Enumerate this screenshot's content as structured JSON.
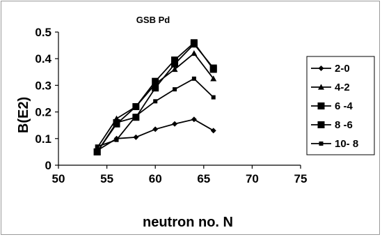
{
  "chart_data": {
    "type": "line",
    "title": "GSB Pd",
    "xlabel": "neutron no. N",
    "ylabel": "B(E2)",
    "xlim": [
      50,
      75
    ],
    "ylim": [
      0,
      0.5
    ],
    "x_ticks": [
      50,
      55,
      60,
      65,
      70,
      75
    ],
    "y_ticks": [
      0,
      0.1,
      0.2,
      0.3,
      0.4,
      0.5
    ],
    "x_tick_labels": [
      "50",
      "55",
      "60",
      "65",
      "70",
      "75"
    ],
    "y_tick_labels": [
      "0",
      "0.1",
      "0.2",
      "0.3",
      "0.4",
      "0.5"
    ],
    "legend_position": "right",
    "grid": false,
    "series": [
      {
        "name": "2-0",
        "marker": "diamond",
        "color": "#000000",
        "x": [
          54,
          56,
          58,
          60,
          62,
          64,
          66
        ],
        "y": [
          0.055,
          0.1,
          0.105,
          0.135,
          0.155,
          0.172,
          0.13
        ]
      },
      {
        "name": "4-2",
        "marker": "triangle",
        "color": "#000000",
        "x": [
          54,
          56,
          58,
          60,
          62,
          64,
          66
        ],
        "y": [
          0.065,
          0.175,
          0.22,
          0.305,
          0.36,
          0.42,
          0.325
        ]
      },
      {
        "name": "6 -4",
        "marker": "square",
        "color": "#000000",
        "x": [
          54,
          56,
          58,
          60,
          62,
          64,
          66
        ],
        "y": [
          0.05,
          0.155,
          0.22,
          0.315,
          0.395,
          0.46,
          0.36
        ]
      },
      {
        "name": "8 -6",
        "marker": "square",
        "color": "#000000",
        "x": [
          54,
          56,
          58,
          60,
          62,
          64,
          66
        ],
        "y": [
          0.05,
          0.16,
          0.18,
          0.29,
          0.38,
          0.455,
          0.365
        ]
      },
      {
        "name": "10- 8",
        "marker": "small-square",
        "color": "#000000",
        "x": [
          54,
          56,
          58,
          60,
          62,
          64,
          66
        ],
        "y": [
          0.07,
          0.095,
          0.185,
          0.24,
          0.285,
          0.325,
          0.255
        ]
      }
    ]
  }
}
